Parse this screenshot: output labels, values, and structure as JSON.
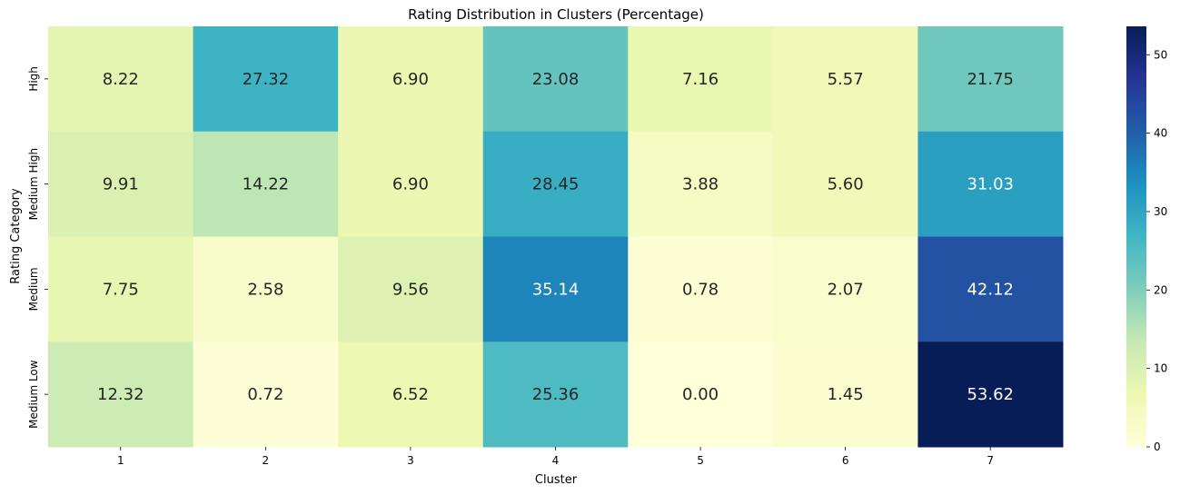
{
  "chart_data": {
    "type": "heatmap",
    "title": "Rating Distribution in Clusters (Percentage)",
    "xlabel": "Cluster",
    "ylabel": "Rating Category",
    "x_categories": [
      "1",
      "2",
      "3",
      "4",
      "5",
      "6",
      "7"
    ],
    "y_categories": [
      "High",
      "Medium High",
      "Medium",
      "Medium Low"
    ],
    "values": [
      [
        8.22,
        27.32,
        6.9,
        23.08,
        7.16,
        5.57,
        21.75
      ],
      [
        9.91,
        14.22,
        6.9,
        28.45,
        3.88,
        5.6,
        31.03
      ],
      [
        7.75,
        2.58,
        9.56,
        35.14,
        0.78,
        2.07,
        42.12
      ],
      [
        12.32,
        0.72,
        6.52,
        25.36,
        0.0,
        1.45,
        53.62
      ]
    ],
    "value_format": "0.00",
    "colormap": "YlGnBu",
    "colorbar": {
      "range": [
        0,
        53.62
      ],
      "ticks": [
        "0",
        "10",
        "20",
        "30",
        "40",
        "50"
      ]
    }
  }
}
